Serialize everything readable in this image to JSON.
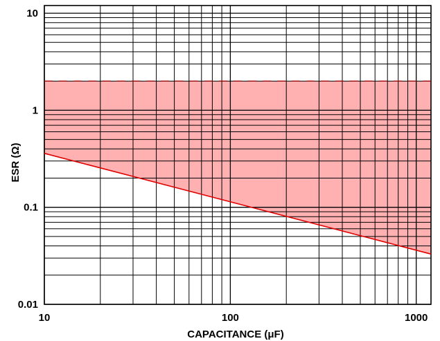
{
  "chart_data": {
    "type": "area",
    "title": "",
    "xlabel": "CAPACITANCE (μF)",
    "ylabel": "ESR (Ω)",
    "x_scale": "log",
    "y_scale": "log",
    "xlim": [
      10,
      1200
    ],
    "ylim": [
      0.01,
      12
    ],
    "x_ticks": [
      {
        "value": 10,
        "label": "10"
      },
      {
        "value": 100,
        "label": "100"
      },
      {
        "value": 1000,
        "label": "1000"
      }
    ],
    "y_ticks": [
      {
        "value": 0.01,
        "label": "0.01"
      },
      {
        "value": 0.1,
        "label": "0.1"
      },
      {
        "value": 1,
        "label": "1"
      },
      {
        "value": 10,
        "label": "10"
      }
    ],
    "grid": true,
    "series": [
      {
        "role": "stable-region",
        "upper_bound": {
          "x": [
            10,
            1200
          ],
          "y": [
            2,
            2
          ]
        },
        "lower_bound": {
          "x": [
            10,
            1200
          ],
          "y": [
            0.36,
            0.033
          ]
        },
        "fill_color": "#ffb0b0",
        "boundary_color": "#e00000"
      }
    ]
  }
}
